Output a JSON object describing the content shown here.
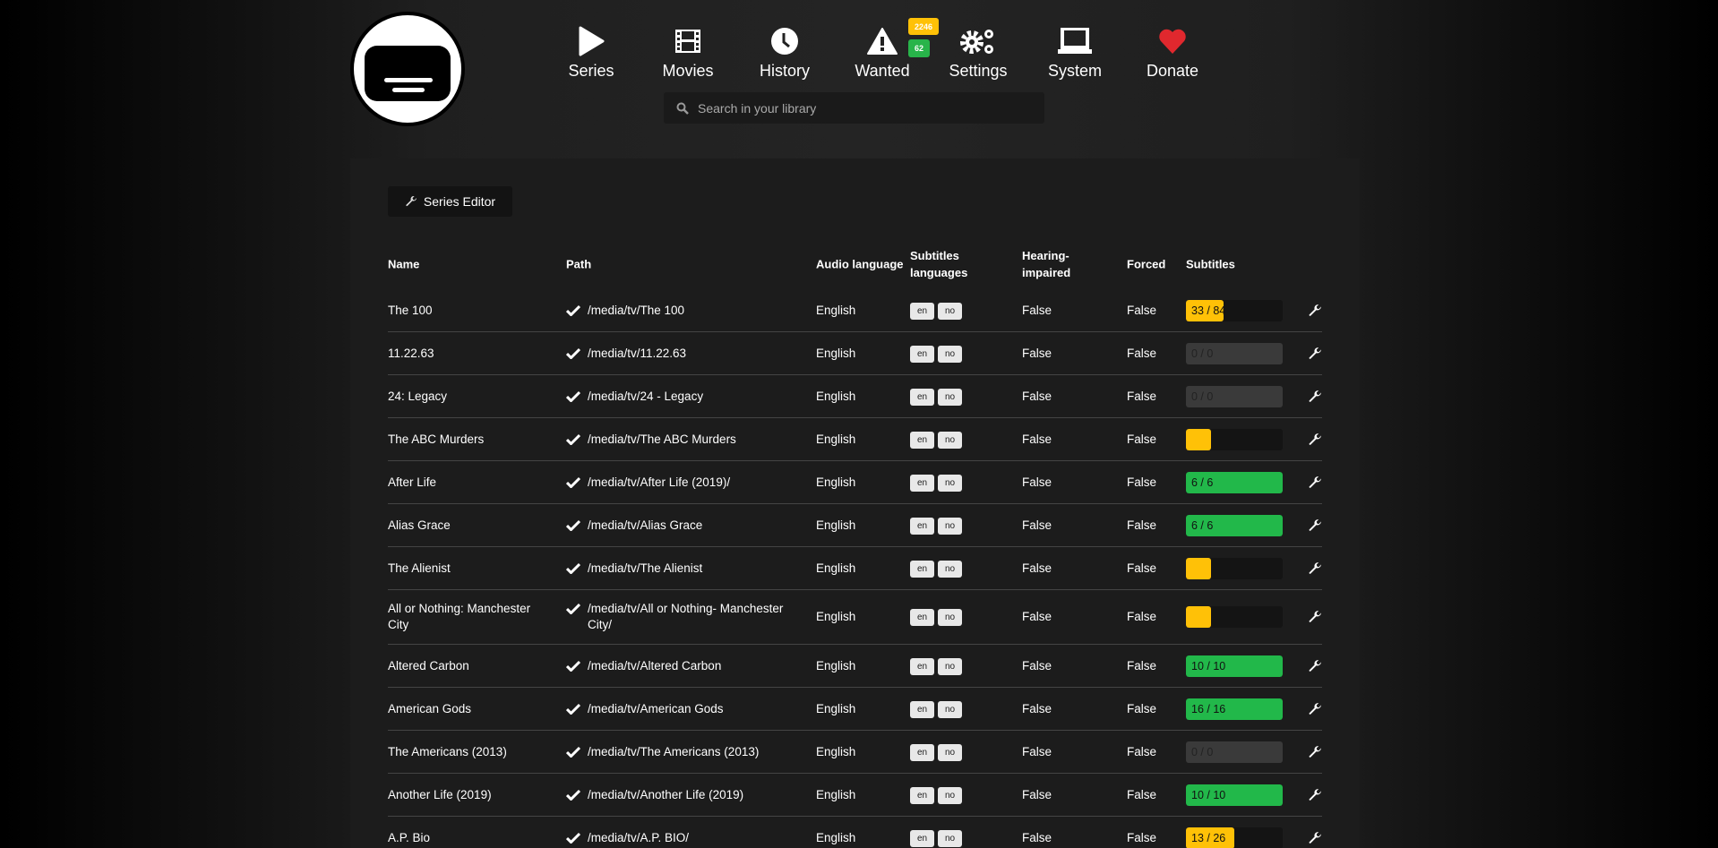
{
  "header": {
    "nav": [
      {
        "label": "Series",
        "icon": "play-icon"
      },
      {
        "label": "Movies",
        "icon": "film-icon"
      },
      {
        "label": "History",
        "icon": "clock-icon"
      },
      {
        "label": "Wanted",
        "icon": "warning-icon"
      },
      {
        "label": "Settings",
        "icon": "gears-icon"
      },
      {
        "label": "System",
        "icon": "laptop-icon"
      },
      {
        "label": "Donate",
        "icon": "heart-icon"
      }
    ],
    "wanted_badges": {
      "series": "2246",
      "movies": "62",
      "series_color": "#ffc107",
      "movies_color": "#28b44a"
    },
    "search_placeholder": "Search in your library"
  },
  "toolbar": {
    "series_editor_label": "Series Editor"
  },
  "table": {
    "columns": [
      "Name",
      "Path",
      "Audio language",
      "Subtitles languages",
      "Hearing-impaired",
      "Forced",
      "Subtitles"
    ],
    "rows": [
      {
        "name": "The 100",
        "path": "/media/tv/The 100",
        "audio": "English",
        "langs": [
          "en",
          "no"
        ],
        "hi": "False",
        "forced": "False",
        "subs": "33 / 84",
        "progress": 0.39,
        "status": "partial"
      },
      {
        "name": "11.22.63",
        "path": "/media/tv/11.22.63",
        "audio": "English",
        "langs": [
          "en",
          "no"
        ],
        "hi": "False",
        "forced": "False",
        "subs": "0 / 0",
        "progress": 0,
        "status": "none"
      },
      {
        "name": "24: Legacy",
        "path": "/media/tv/24 - Legacy",
        "audio": "English",
        "langs": [
          "en",
          "no"
        ],
        "hi": "False",
        "forced": "False",
        "subs": "0 / 0",
        "progress": 0,
        "status": "none"
      },
      {
        "name": "The ABC Murders",
        "path": "/media/tv/The ABC Murders",
        "audio": "English",
        "langs": [
          "en",
          "no"
        ],
        "hi": "False",
        "forced": "False",
        "subs": "",
        "progress": 0.26,
        "status": "partial"
      },
      {
        "name": "After Life",
        "path": "/media/tv/After Life (2019)/",
        "audio": "English",
        "langs": [
          "en",
          "no"
        ],
        "hi": "False",
        "forced": "False",
        "subs": "6 / 6",
        "progress": 1,
        "status": "complete"
      },
      {
        "name": "Alias Grace",
        "path": "/media/tv/Alias Grace",
        "audio": "English",
        "langs": [
          "en",
          "no"
        ],
        "hi": "False",
        "forced": "False",
        "subs": "6 / 6",
        "progress": 1,
        "status": "complete"
      },
      {
        "name": "The Alienist",
        "path": "/media/tv/The Alienist",
        "audio": "English",
        "langs": [
          "en",
          "no"
        ],
        "hi": "False",
        "forced": "False",
        "subs": "",
        "progress": 0.26,
        "status": "partial"
      },
      {
        "name": "All or Nothing: Manchester City",
        "path": "/media/tv/All or Nothing- Manchester City/",
        "audio": "English",
        "langs": [
          "en",
          "no"
        ],
        "hi": "False",
        "forced": "False",
        "subs": "",
        "progress": 0.26,
        "status": "partial"
      },
      {
        "name": "Altered Carbon",
        "path": "/media/tv/Altered Carbon",
        "audio": "English",
        "langs": [
          "en",
          "no"
        ],
        "hi": "False",
        "forced": "False",
        "subs": "10 / 10",
        "progress": 1,
        "status": "complete"
      },
      {
        "name": "American Gods",
        "path": "/media/tv/American Gods",
        "audio": "English",
        "langs": [
          "en",
          "no"
        ],
        "hi": "False",
        "forced": "False",
        "subs": "16 / 16",
        "progress": 1,
        "status": "complete"
      },
      {
        "name": "The Americans (2013)",
        "path": "/media/tv/The Americans (2013)",
        "audio": "English",
        "langs": [
          "en",
          "no"
        ],
        "hi": "False",
        "forced": "False",
        "subs": "0 / 0",
        "progress": 0,
        "status": "none"
      },
      {
        "name": "Another Life (2019)",
        "path": "/media/tv/Another Life (2019)",
        "audio": "English",
        "langs": [
          "en",
          "no"
        ],
        "hi": "False",
        "forced": "False",
        "subs": "10 / 10",
        "progress": 1,
        "status": "complete"
      },
      {
        "name": "A.P. Bio",
        "path": "/media/tv/A.P. BIO/",
        "audio": "English",
        "langs": [
          "en",
          "no"
        ],
        "hi": "False",
        "forced": "False",
        "subs": "13 / 26",
        "progress": 0.5,
        "status": "partial"
      }
    ]
  },
  "colors": {
    "partial": "#ffc107",
    "complete": "#22b84a",
    "none": "#3a3a3a",
    "heart": "#e0282e"
  }
}
